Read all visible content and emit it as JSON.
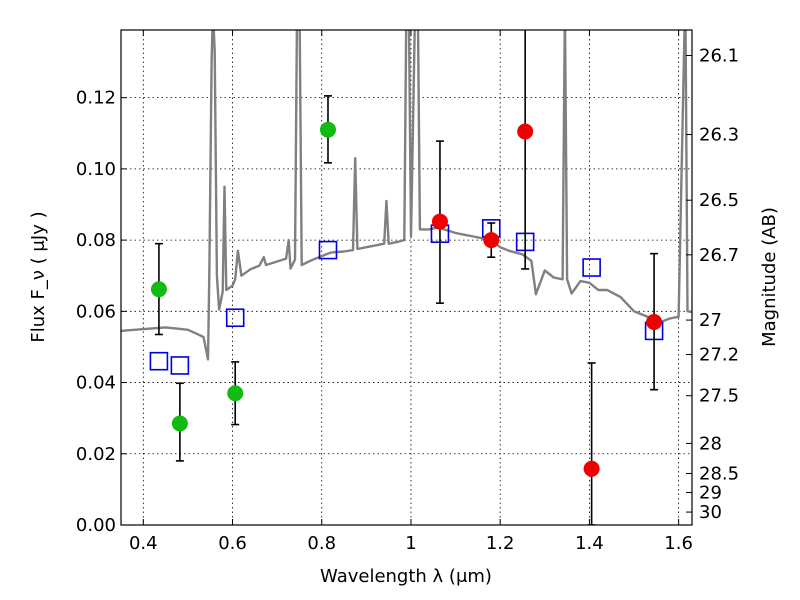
{
  "chart_data": {
    "type": "scatter",
    "title": "",
    "xlabel": "Wavelength  λ (μm)",
    "ylabel": "Flux  F_ν  ( μJy )",
    "ylabel_right": "Magnitude (AB)",
    "xlim": [
      0.35,
      1.63
    ],
    "ylim": [
      0.0,
      0.139
    ],
    "x_ticks": [
      0.4,
      0.6,
      0.8,
      1.0,
      1.2,
      1.4,
      1.6
    ],
    "x_tick_labels": [
      "0.4",
      "0.6",
      "0.8",
      "1",
      "1.2",
      "1.4",
      "1.6"
    ],
    "y_ticks": [
      0.0,
      0.02,
      0.04,
      0.06,
      0.08,
      0.1,
      0.12
    ],
    "y_tick_labels": [
      "0.00",
      "0.02",
      "0.04",
      "0.06",
      "0.08",
      "0.10",
      "0.12"
    ],
    "right_ticks": [
      {
        "label": "26.1",
        "value": 26.1
      },
      {
        "label": "26.3",
        "value": 26.3
      },
      {
        "label": "26.5",
        "value": 26.5
      },
      {
        "label": "26.7",
        "value": 26.7
      },
      {
        "label": "27",
        "value": 27.0
      },
      {
        "label": "27.2",
        "value": 27.2
      },
      {
        "label": "27.5",
        "value": 27.5
      },
      {
        "label": "28",
        "value": 28.0
      },
      {
        "label": "28.5",
        "value": 28.5
      },
      {
        "label": "29",
        "value": 29.0
      },
      {
        "label": "30",
        "value": 30.0
      }
    ],
    "grid": true,
    "series": [
      {
        "kind": "points",
        "color": "#11bb11",
        "marker": "circle",
        "points": [
          {
            "x": 0.435,
            "y": 0.0662,
            "lo": 0.0535,
            "hi": 0.079
          },
          {
            "x": 0.482,
            "y": 0.0285,
            "lo": 0.018,
            "hi": 0.0398
          },
          {
            "x": 0.606,
            "y": 0.037,
            "lo": 0.0282,
            "hi": 0.0458
          },
          {
            "x": 0.814,
            "y": 0.111,
            "lo": 0.1017,
            "hi": 0.1205
          }
        ]
      },
      {
        "kind": "points",
        "color": "#ee0000",
        "marker": "circle",
        "points": [
          {
            "x": 1.065,
            "y": 0.0852,
            "lo": 0.0623,
            "hi": 0.1078
          },
          {
            "x": 1.18,
            "y": 0.08,
            "lo": 0.0752,
            "hi": 0.0848
          },
          {
            "x": 1.256,
            "y": 0.1105,
            "lo": 0.0719,
            "hi": 0.149
          },
          {
            "x": 1.405,
            "y": 0.0158,
            "lo": 0.0,
            "hi": 0.0455
          },
          {
            "x": 1.545,
            "y": 0.057,
            "lo": 0.038,
            "hi": 0.0762
          }
        ]
      },
      {
        "kind": "model",
        "color": "#0000dd",
        "marker": "open-square",
        "points": [
          {
            "x": 0.435,
            "y": 0.046
          },
          {
            "x": 0.482,
            "y": 0.0448
          },
          {
            "x": 0.606,
            "y": 0.0582
          },
          {
            "x": 0.814,
            "y": 0.0772
          },
          {
            "x": 1.065,
            "y": 0.0818
          },
          {
            "x": 1.18,
            "y": 0.0833
          },
          {
            "x": 1.256,
            "y": 0.0795
          },
          {
            "x": 1.405,
            "y": 0.0723
          },
          {
            "x": 1.545,
            "y": 0.0545
          }
        ]
      },
      {
        "kind": "sed",
        "color": "#808080",
        "points": [
          [
            0.35,
            0.0545
          ],
          [
            0.38,
            0.0548
          ],
          [
            0.42,
            0.0552
          ],
          [
            0.45,
            0.0555
          ],
          [
            0.48,
            0.0551
          ],
          [
            0.5,
            0.0548
          ],
          [
            0.52,
            0.0537
          ],
          [
            0.535,
            0.0528
          ],
          [
            0.545,
            0.0465
          ],
          [
            0.548,
            0.07
          ],
          [
            0.553,
            0.13
          ],
          [
            0.556,
            0.145
          ],
          [
            0.56,
            0.133
          ],
          [
            0.565,
            0.07
          ],
          [
            0.57,
            0.0605
          ],
          [
            0.578,
            0.0655
          ],
          [
            0.582,
            0.095
          ],
          [
            0.586,
            0.066
          ],
          [
            0.6,
            0.0672
          ],
          [
            0.606,
            0.069
          ],
          [
            0.612,
            0.077
          ],
          [
            0.62,
            0.07
          ],
          [
            0.64,
            0.0718
          ],
          [
            0.66,
            0.0728
          ],
          [
            0.67,
            0.0752
          ],
          [
            0.675,
            0.073
          ],
          [
            0.7,
            0.074
          ],
          [
            0.72,
            0.0748
          ],
          [
            0.726,
            0.08
          ],
          [
            0.73,
            0.072
          ],
          [
            0.74,
            0.0745
          ],
          [
            0.745,
            0.15
          ],
          [
            0.75,
            0.15
          ],
          [
            0.755,
            0.073
          ],
          [
            0.78,
            0.0745
          ],
          [
            0.8,
            0.0755
          ],
          [
            0.82,
            0.0765
          ],
          [
            0.85,
            0.0768
          ],
          [
            0.87,
            0.0772
          ],
          [
            0.875,
            0.103
          ],
          [
            0.88,
            0.0775
          ],
          [
            0.9,
            0.078
          ],
          [
            0.94,
            0.079
          ],
          [
            0.945,
            0.091
          ],
          [
            0.95,
            0.079
          ],
          [
            0.97,
            0.0795
          ],
          [
            0.985,
            0.08
          ],
          [
            0.99,
            0.15
          ],
          [
            0.995,
            0.15
          ],
          [
            1.0,
            0.081
          ],
          [
            1.01,
            0.15
          ],
          [
            1.015,
            0.15
          ],
          [
            1.02,
            0.083
          ],
          [
            1.04,
            0.083
          ],
          [
            1.06,
            0.0835
          ],
          [
            1.08,
            0.0828
          ],
          [
            1.1,
            0.082
          ],
          [
            1.12,
            0.0815
          ],
          [
            1.14,
            0.081
          ],
          [
            1.16,
            0.0805
          ],
          [
            1.18,
            0.0798
          ],
          [
            1.2,
            0.078
          ],
          [
            1.22,
            0.077
          ],
          [
            1.25,
            0.076
          ],
          [
            1.27,
            0.0742
          ],
          [
            1.28,
            0.0648
          ],
          [
            1.3,
            0.0715
          ],
          [
            1.32,
            0.0695
          ],
          [
            1.34,
            0.069
          ],
          [
            1.345,
            0.145
          ],
          [
            1.35,
            0.069
          ],
          [
            1.36,
            0.065
          ],
          [
            1.38,
            0.0685
          ],
          [
            1.4,
            0.068
          ],
          [
            1.42,
            0.066
          ],
          [
            1.44,
            0.066
          ],
          [
            1.47,
            0.064
          ],
          [
            1.5,
            0.06
          ],
          [
            1.52,
            0.059
          ],
          [
            1.54,
            0.058
          ],
          [
            1.56,
            0.057
          ],
          [
            1.58,
            0.058
          ],
          [
            1.6,
            0.0585
          ],
          [
            1.615,
            0.15
          ],
          [
            1.62,
            0.06
          ],
          [
            1.63,
            0.0598
          ]
        ]
      }
    ]
  }
}
